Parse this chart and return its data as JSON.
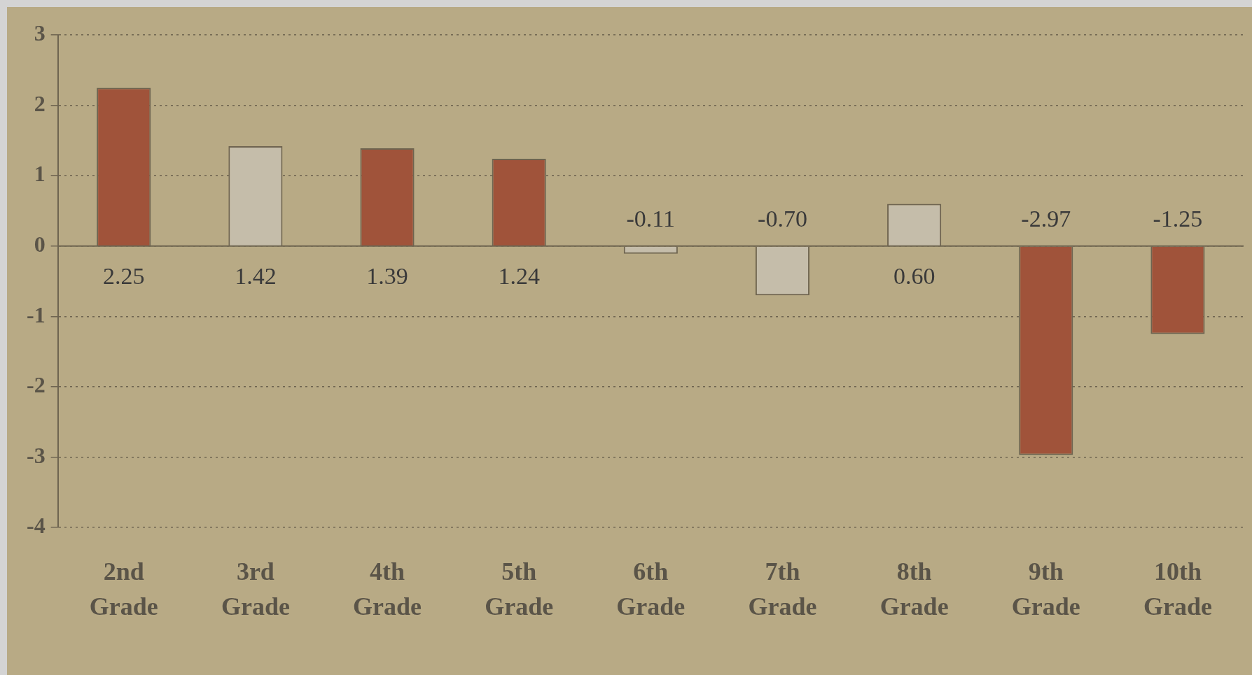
{
  "chart_data": {
    "type": "bar",
    "categories": [
      "2nd Grade",
      "3rd Grade",
      "4th Grade",
      "5th Grade",
      "6th Grade",
      "7th Grade",
      "8th Grade",
      "9th Grade",
      "10th Grade"
    ],
    "values": [
      2.25,
      1.42,
      1.39,
      1.24,
      -0.11,
      -0.7,
      0.6,
      -2.97,
      -1.25
    ],
    "value_labels": [
      "2.25",
      "1.42",
      "1.39",
      "1.24",
      "-0.11",
      "-0.70",
      "0.60",
      "-2.97",
      "-1.25"
    ],
    "colors": [
      "#a0533a",
      "#c5bdaa",
      "#a0533a",
      "#a0533a",
      "#c5bdaa",
      "#c5bdaa",
      "#c5bdaa",
      "#a0533a",
      "#a0533a"
    ],
    "ylim": [
      -4,
      3
    ],
    "yticks": [
      -4,
      -3,
      -2,
      -1,
      0,
      1,
      2,
      3
    ],
    "grid": "y",
    "legend": false
  }
}
